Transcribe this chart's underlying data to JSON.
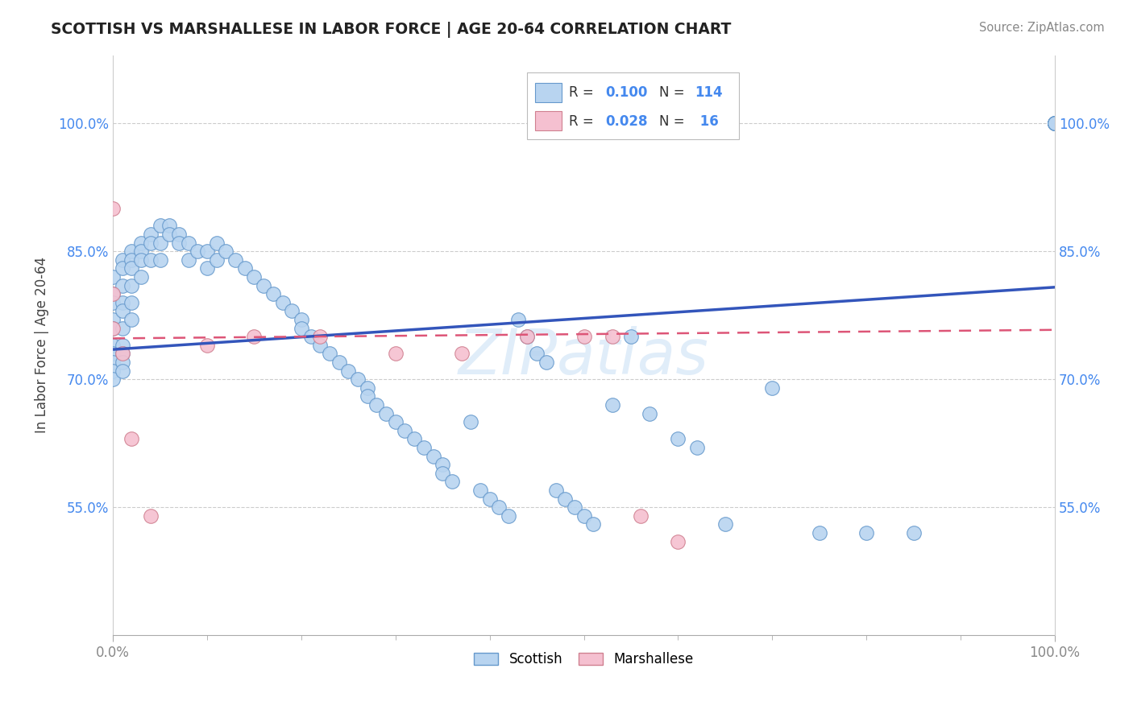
{
  "title": "SCOTTISH VS MARSHALLESE IN LABOR FORCE | AGE 20-64 CORRELATION CHART",
  "source": "Source: ZipAtlas.com",
  "ylabel": "In Labor Force | Age 20-64",
  "ytick_labels": [
    "55.0%",
    "70.0%",
    "85.0%",
    "100.0%"
  ],
  "ytick_values": [
    0.55,
    0.7,
    0.85,
    1.0
  ],
  "xlim": [
    0.0,
    1.0
  ],
  "ylim": [
    0.4,
    1.08
  ],
  "legend_r_sc": "0.100",
  "legend_n_sc": "114",
  "legend_r_ma": "0.028",
  "legend_n_ma": "16",
  "scottish_color": "#b8d4f0",
  "scottish_edge": "#6699cc",
  "marshallese_color": "#f5c0d0",
  "marshallese_edge": "#d08090",
  "trend_sc_color": "#3355bb",
  "trend_ma_color": "#dd5577",
  "watermark": "ZIPatlas",
  "trend_sc_y0": 0.735,
  "trend_sc_y1": 0.808,
  "trend_ma_y0": 0.748,
  "trend_ma_y1": 0.758,
  "scottish_x": [
    0.0,
    0.0,
    0.0,
    0.0,
    0.0,
    0.0,
    0.0,
    0.0,
    0.0,
    0.0,
    0.01,
    0.01,
    0.01,
    0.01,
    0.01,
    0.01,
    0.01,
    0.01,
    0.01,
    0.01,
    0.02,
    0.02,
    0.02,
    0.02,
    0.02,
    0.02,
    0.03,
    0.03,
    0.03,
    0.03,
    0.04,
    0.04,
    0.04,
    0.05,
    0.05,
    0.05,
    0.06,
    0.06,
    0.07,
    0.07,
    0.08,
    0.08,
    0.09,
    0.1,
    0.1,
    0.11,
    0.11,
    0.12,
    0.13,
    0.14,
    0.15,
    0.16,
    0.17,
    0.18,
    0.19,
    0.2,
    0.2,
    0.21,
    0.22,
    0.23,
    0.24,
    0.25,
    0.26,
    0.27,
    0.27,
    0.28,
    0.29,
    0.3,
    0.31,
    0.32,
    0.33,
    0.34,
    0.35,
    0.35,
    0.36,
    0.38,
    0.39,
    0.4,
    0.41,
    0.42,
    0.43,
    0.44,
    0.45,
    0.46,
    0.47,
    0.48,
    0.49,
    0.5,
    0.51,
    0.53,
    0.55,
    0.57,
    0.6,
    0.62,
    0.65,
    0.7,
    0.75,
    0.8,
    0.85,
    1.0,
    1.0,
    1.0,
    1.0,
    1.0,
    1.0,
    1.0,
    1.0,
    1.0,
    1.0,
    1.0,
    1.0,
    1.0,
    1.0,
    1.0
  ],
  "scottish_y": [
    0.82,
    0.8,
    0.79,
    0.77,
    0.76,
    0.74,
    0.73,
    0.72,
    0.71,
    0.7,
    0.84,
    0.83,
    0.81,
    0.79,
    0.78,
    0.76,
    0.74,
    0.73,
    0.72,
    0.71,
    0.85,
    0.84,
    0.83,
    0.81,
    0.79,
    0.77,
    0.86,
    0.85,
    0.84,
    0.82,
    0.87,
    0.86,
    0.84,
    0.88,
    0.86,
    0.84,
    0.88,
    0.87,
    0.87,
    0.86,
    0.86,
    0.84,
    0.85,
    0.85,
    0.83,
    0.86,
    0.84,
    0.85,
    0.84,
    0.83,
    0.82,
    0.81,
    0.8,
    0.79,
    0.78,
    0.77,
    0.76,
    0.75,
    0.74,
    0.73,
    0.72,
    0.71,
    0.7,
    0.69,
    0.68,
    0.67,
    0.66,
    0.65,
    0.64,
    0.63,
    0.62,
    0.61,
    0.6,
    0.59,
    0.58,
    0.65,
    0.57,
    0.56,
    0.55,
    0.54,
    0.77,
    0.75,
    0.73,
    0.72,
    0.57,
    0.56,
    0.55,
    0.54,
    0.53,
    0.67,
    0.75,
    0.66,
    0.63,
    0.62,
    0.53,
    0.69,
    0.52,
    0.52,
    0.52,
    1.0,
    1.0,
    1.0,
    1.0,
    1.0,
    1.0,
    1.0,
    1.0,
    1.0,
    1.0,
    1.0,
    1.0,
    1.0,
    1.0,
    1.0
  ],
  "marshallese_x": [
    0.0,
    0.0,
    0.01,
    0.02,
    0.04,
    0.1,
    0.15,
    0.22,
    0.3,
    0.37,
    0.44,
    0.5,
    0.53,
    0.56,
    0.6,
    0.0
  ],
  "marshallese_y": [
    0.9,
    0.8,
    0.73,
    0.63,
    0.54,
    0.74,
    0.75,
    0.75,
    0.73,
    0.73,
    0.75,
    0.75,
    0.75,
    0.54,
    0.51,
    0.76
  ]
}
